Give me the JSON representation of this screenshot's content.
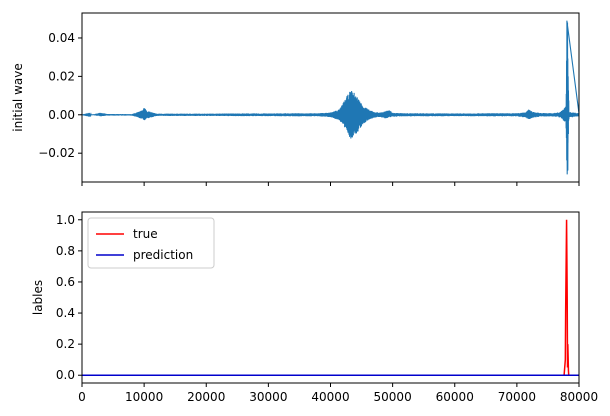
{
  "chart_data": [
    {
      "type": "line",
      "ylabel": "initial wave",
      "xlim": [
        0,
        80000
      ],
      "ylim": [
        -0.035,
        0.053
      ],
      "yticks": [
        -0.02,
        0.0,
        0.02,
        0.04
      ],
      "ytick_labels": [
        "−0.02",
        "0.00",
        "0.02",
        "0.04"
      ],
      "xticks": [
        0,
        10000,
        20000,
        30000,
        40000,
        50000,
        60000,
        70000,
        80000
      ],
      "show_xtick_labels": false,
      "grid": false,
      "series": [
        {
          "color": "#1f77b4",
          "description_points": [
            [
              0,
              0.0
            ],
            [
              2000,
              0.0003
            ],
            [
              3000,
              0.0012
            ],
            [
              4000,
              0.0004
            ],
            [
              6000,
              0.0004
            ],
            [
              8000,
              0.0003
            ],
            [
              9500,
              0.002
            ],
            [
              10000,
              0.004
            ],
            [
              10500,
              0.002
            ],
            [
              12000,
              0.0006
            ],
            [
              15000,
              0.0006
            ],
            [
              20000,
              0.0006
            ],
            [
              25000,
              0.0007
            ],
            [
              30000,
              0.0007
            ],
            [
              35000,
              0.0008
            ],
            [
              38000,
              0.0008
            ],
            [
              40000,
              0.0012
            ],
            [
              41500,
              0.003
            ],
            [
              42500,
              0.009
            ],
            [
              43300,
              0.013
            ],
            [
              44000,
              0.011
            ],
            [
              45000,
              0.006
            ],
            [
              46000,
              0.003
            ],
            [
              47000,
              0.0015
            ],
            [
              48000,
              0.0012
            ],
            [
              49000,
              0.002
            ],
            [
              49500,
              0.0025
            ],
            [
              50000,
              0.001
            ],
            [
              52000,
              0.0008
            ],
            [
              55000,
              0.0008
            ],
            [
              60000,
              0.0007
            ],
            [
              65000,
              0.0008
            ],
            [
              70000,
              0.0008
            ],
            [
              71500,
              0.0015
            ],
            [
              72000,
              0.003
            ],
            [
              72500,
              0.0015
            ],
            [
              74000,
              0.0009
            ],
            [
              76000,
              0.0009
            ],
            [
              77000,
              0.0015
            ],
            [
              77500,
              0.003
            ],
            [
              77900,
              0.0045
            ],
            [
              78050,
              0.049
            ],
            [
              78150,
              0.049
            ],
            [
              78250,
              0.02
            ],
            [
              78400,
              0.0015
            ],
            [
              80000,
              0.0008
            ]
          ],
          "envelope_lower": [
            [
              0,
              0.0
            ],
            [
              2000,
              -0.0003
            ],
            [
              3000,
              -0.0008
            ],
            [
              4000,
              -0.0004
            ],
            [
              6000,
              -0.0004
            ],
            [
              8000,
              -0.0004
            ],
            [
              9500,
              -0.002
            ],
            [
              10000,
              -0.003
            ],
            [
              10500,
              -0.002
            ],
            [
              12000,
              -0.0006
            ],
            [
              15000,
              -0.0006
            ],
            [
              20000,
              -0.0006
            ],
            [
              25000,
              -0.0007
            ],
            [
              30000,
              -0.0007
            ],
            [
              35000,
              -0.0008
            ],
            [
              38000,
              -0.0008
            ],
            [
              40000,
              -0.0012
            ],
            [
              41500,
              -0.003
            ],
            [
              42500,
              -0.008
            ],
            [
              43300,
              -0.013
            ],
            [
              44000,
              -0.011
            ],
            [
              45000,
              -0.006
            ],
            [
              46000,
              -0.003
            ],
            [
              47000,
              -0.0015
            ],
            [
              48000,
              -0.0012
            ],
            [
              49000,
              -0.002
            ],
            [
              49500,
              -0.0015
            ],
            [
              50000,
              -0.001
            ],
            [
              52000,
              -0.0008
            ],
            [
              55000,
              -0.0008
            ],
            [
              60000,
              -0.0007
            ],
            [
              65000,
              -0.0008
            ],
            [
              70000,
              -0.0008
            ],
            [
              71500,
              -0.0015
            ],
            [
              72000,
              -0.0028
            ],
            [
              72500,
              -0.0015
            ],
            [
              74000,
              -0.0009
            ],
            [
              76000,
              -0.0009
            ],
            [
              77000,
              -0.0015
            ],
            [
              77500,
              -0.003
            ],
            [
              77900,
              -0.0045
            ],
            [
              78050,
              -0.031
            ],
            [
              78150,
              -0.031
            ],
            [
              78250,
              -0.01
            ],
            [
              78400,
              -0.0015
            ],
            [
              80000,
              -0.0008
            ]
          ]
        }
      ]
    },
    {
      "type": "line",
      "ylabel": "lables",
      "xlim": [
        0,
        80000
      ],
      "ylim": [
        -0.05,
        1.05
      ],
      "yticks": [
        0.0,
        0.2,
        0.4,
        0.6,
        0.8,
        1.0
      ],
      "ytick_labels": [
        "0.0",
        "0.2",
        "0.4",
        "0.6",
        "0.8",
        "1.0"
      ],
      "xticks": [
        0,
        10000,
        20000,
        30000,
        40000,
        50000,
        60000,
        70000,
        80000
      ],
      "xtick_labels": [
        "0",
        "10000",
        "20000",
        "30000",
        "40000",
        "50000",
        "60000",
        "70000",
        "80000"
      ],
      "grid": false,
      "legend": {
        "placement": "upper-left",
        "entries": [
          {
            "label": "true",
            "color": "#ff0000"
          },
          {
            "label": "prediction",
            "color": "#0000cc"
          }
        ]
      },
      "series": [
        {
          "name": "true",
          "color": "#ff0000",
          "x": [
            0,
            77600,
            77800,
            77850,
            78000,
            78100,
            78150,
            78200,
            78300,
            78350,
            80000
          ],
          "y": [
            0,
            0,
            0.1,
            0.4,
            1.0,
            0.5,
            0.05,
            0.2,
            0.03,
            0,
            0
          ]
        },
        {
          "name": "prediction",
          "color": "#0000cc",
          "x": [
            0,
            80000
          ],
          "y": [
            0,
            0
          ]
        }
      ]
    }
  ]
}
